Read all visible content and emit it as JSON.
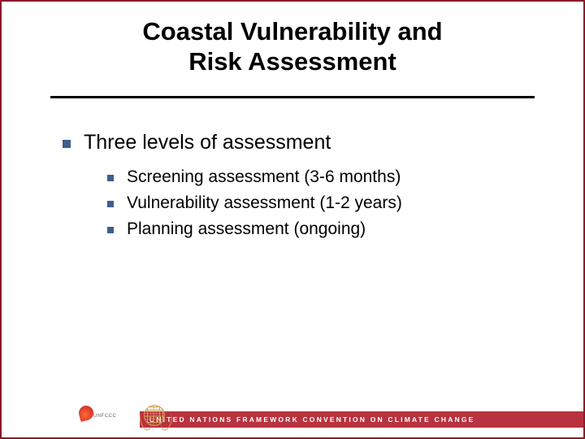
{
  "title": {
    "line1": "Coastal Vulnerability and",
    "line2": "Risk Assessment",
    "color": "#000000",
    "fontsize": 31,
    "weight": "bold"
  },
  "rule": {
    "color": "#000000",
    "thickness": 3
  },
  "bullets": {
    "color": "#3e5f8a",
    "l1_size": 10,
    "l2_size": 8
  },
  "content": {
    "l1": "Three levels of assessment",
    "l1_fontsize": 25,
    "l2_fontsize": 21,
    "l2": [
      "Screening assessment (3-6 months)",
      "Vulnerability assessment (1-2 years)",
      "Planning assessment (ongoing)"
    ]
  },
  "footer": {
    "bar_color": "#b8323f",
    "text": "UNITED NATIONS FRAMEWORK CONVENTION ON CLIMATE CHANGE",
    "text_color": "#ffffff",
    "text_fontsize": 8.5,
    "letter_spacing": 2.2,
    "logo1_label": "UNFCCC"
  },
  "border_color": "#8b1a2b",
  "background_color": "#ffffff"
}
